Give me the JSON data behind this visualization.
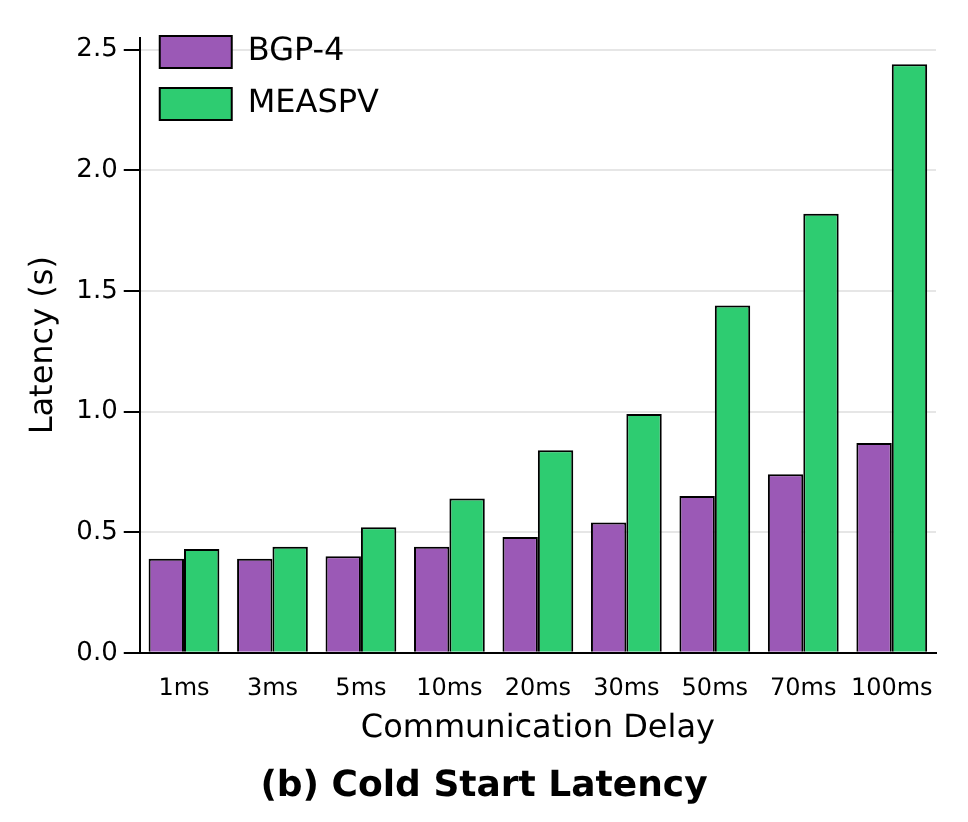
{
  "chart_data": {
    "type": "bar",
    "title": "(b) Cold Start Latency",
    "xlabel": "Communication Delay",
    "ylabel": "Latency (s)",
    "categories": [
      "1ms",
      "3ms",
      "5ms",
      "10ms",
      "20ms",
      "30ms",
      "50ms",
      "70ms",
      "100ms"
    ],
    "series": [
      {
        "name": "BGP-4",
        "color": "#9b59b6",
        "values": [
          0.39,
          0.39,
          0.4,
          0.44,
          0.48,
          0.54,
          0.65,
          0.74,
          0.87
        ]
      },
      {
        "name": "MEASPV",
        "color": "#2ecc71",
        "values": [
          0.43,
          0.44,
          0.52,
          0.64,
          0.84,
          0.99,
          1.44,
          1.82,
          2.44
        ]
      }
    ],
    "ylim": [
      0,
      2.55
    ],
    "yticks": [
      {
        "value": 0,
        "label": "0.0"
      },
      {
        "value": 0.5,
        "label": "0.5"
      },
      {
        "value": 1,
        "label": "1.0"
      },
      {
        "value": 1.5,
        "label": "1.5"
      },
      {
        "value": 2,
        "label": "2.0"
      },
      {
        "value": 2.5,
        "label": "2.5"
      }
    ],
    "grid": "y",
    "legend": "top left"
  }
}
